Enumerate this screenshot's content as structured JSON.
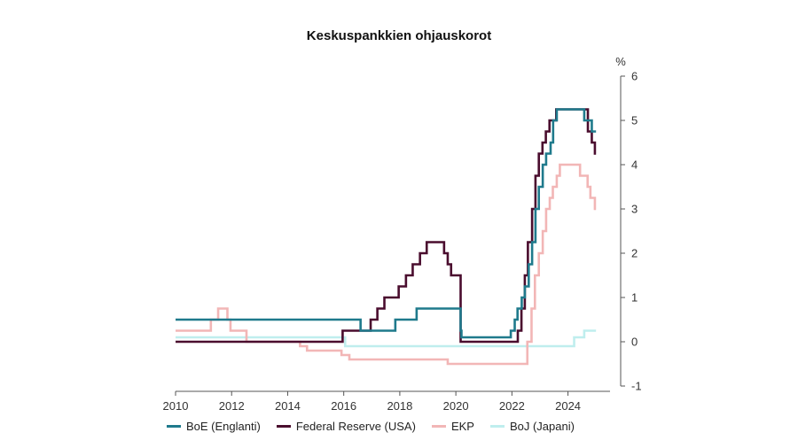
{
  "chart_data": {
    "type": "line",
    "title": "Keskuspankkien ohjauskorot",
    "ylabel": "%",
    "xlabel": "",
    "xlim": [
      2010,
      2025.5
    ],
    "ylim": [
      -1,
      6
    ],
    "x_ticks": [
      "2010",
      "2012",
      "2014",
      "2016",
      "2018",
      "2020",
      "2022",
      "2024"
    ],
    "y_ticks": [
      "6",
      "5",
      "4",
      "3",
      "2",
      "1",
      "0",
      "-1"
    ],
    "grid": false,
    "legend_position": "bottom",
    "series": [
      {
        "name": "BoE (Englanti)",
        "color": "#1f7a8c",
        "step": true,
        "points": [
          [
            2010,
            0.5
          ],
          [
            2016.6,
            0.5
          ],
          [
            2016.6,
            0.25
          ],
          [
            2017.84,
            0.25
          ],
          [
            2017.84,
            0.5
          ],
          [
            2018.6,
            0.5
          ],
          [
            2018.6,
            0.75
          ],
          [
            2020.17,
            0.75
          ],
          [
            2020.17,
            0.25
          ],
          [
            2020.2,
            0.25
          ],
          [
            2020.2,
            0.1
          ],
          [
            2021.96,
            0.1
          ],
          [
            2021.96,
            0.25
          ],
          [
            2022.1,
            0.25
          ],
          [
            2022.1,
            0.5
          ],
          [
            2022.2,
            0.5
          ],
          [
            2022.2,
            0.75
          ],
          [
            2022.35,
            0.75
          ],
          [
            2022.35,
            1.0
          ],
          [
            2022.46,
            1.0
          ],
          [
            2022.46,
            1.25
          ],
          [
            2022.6,
            1.25
          ],
          [
            2022.6,
            1.75
          ],
          [
            2022.72,
            1.75
          ],
          [
            2022.72,
            2.25
          ],
          [
            2022.84,
            2.25
          ],
          [
            2022.84,
            3.0
          ],
          [
            2022.96,
            3.0
          ],
          [
            2022.96,
            3.5
          ],
          [
            2023.1,
            3.5
          ],
          [
            2023.1,
            4.0
          ],
          [
            2023.22,
            4.0
          ],
          [
            2023.22,
            4.25
          ],
          [
            2023.38,
            4.25
          ],
          [
            2023.38,
            4.5
          ],
          [
            2023.47,
            4.5
          ],
          [
            2023.47,
            5.0
          ],
          [
            2023.6,
            5.0
          ],
          [
            2023.6,
            5.25
          ],
          [
            2024.58,
            5.25
          ],
          [
            2024.58,
            5.0
          ],
          [
            2024.85,
            5.0
          ],
          [
            2024.85,
            4.75
          ],
          [
            2025.0,
            4.75
          ]
        ]
      },
      {
        "name": "Federal Reserve (USA)",
        "color": "#4a0d2e",
        "step": true,
        "points": [
          [
            2010,
            0.0
          ],
          [
            2015.96,
            0.0
          ],
          [
            2015.96,
            0.25
          ],
          [
            2016.96,
            0.25
          ],
          [
            2016.96,
            0.5
          ],
          [
            2017.2,
            0.5
          ],
          [
            2017.2,
            0.75
          ],
          [
            2017.45,
            0.75
          ],
          [
            2017.45,
            1.0
          ],
          [
            2017.96,
            1.0
          ],
          [
            2017.96,
            1.25
          ],
          [
            2018.22,
            1.25
          ],
          [
            2018.22,
            1.5
          ],
          [
            2018.46,
            1.5
          ],
          [
            2018.46,
            1.75
          ],
          [
            2018.72,
            1.75
          ],
          [
            2018.72,
            2.0
          ],
          [
            2018.96,
            2.0
          ],
          [
            2018.96,
            2.25
          ],
          [
            2019.58,
            2.25
          ],
          [
            2019.58,
            2.0
          ],
          [
            2019.71,
            2.0
          ],
          [
            2019.71,
            1.75
          ],
          [
            2019.83,
            1.75
          ],
          [
            2019.83,
            1.5
          ],
          [
            2020.17,
            1.5
          ],
          [
            2020.17,
            0.0
          ],
          [
            2022.21,
            0.0
          ],
          [
            2022.21,
            0.25
          ],
          [
            2022.34,
            0.25
          ],
          [
            2022.34,
            0.75
          ],
          [
            2022.46,
            0.75
          ],
          [
            2022.46,
            1.5
          ],
          [
            2022.57,
            1.5
          ],
          [
            2022.57,
            2.25
          ],
          [
            2022.72,
            2.25
          ],
          [
            2022.72,
            3.0
          ],
          [
            2022.84,
            3.0
          ],
          [
            2022.84,
            3.75
          ],
          [
            2022.96,
            3.75
          ],
          [
            2022.96,
            4.25
          ],
          [
            2023.09,
            4.25
          ],
          [
            2023.09,
            4.5
          ],
          [
            2023.21,
            4.5
          ],
          [
            2023.21,
            4.75
          ],
          [
            2023.34,
            4.75
          ],
          [
            2023.34,
            5.0
          ],
          [
            2023.58,
            5.0
          ],
          [
            2023.58,
            5.25
          ],
          [
            2024.71,
            5.25
          ],
          [
            2024.71,
            4.75
          ],
          [
            2024.85,
            4.75
          ],
          [
            2024.85,
            4.5
          ],
          [
            2024.96,
            4.5
          ],
          [
            2024.96,
            4.25
          ],
          [
            2025.0,
            4.25
          ]
        ]
      },
      {
        "name": "EKP",
        "color": "#f2b6b6",
        "step": true,
        "points": [
          [
            2010,
            0.25
          ],
          [
            2011.26,
            0.25
          ],
          [
            2011.26,
            0.5
          ],
          [
            2011.52,
            0.5
          ],
          [
            2011.52,
            0.75
          ],
          [
            2011.85,
            0.75
          ],
          [
            2011.85,
            0.5
          ],
          [
            2011.96,
            0.5
          ],
          [
            2011.96,
            0.25
          ],
          [
            2012.53,
            0.25
          ],
          [
            2012.53,
            0.0
          ],
          [
            2014.44,
            0.0
          ],
          [
            2014.44,
            -0.1
          ],
          [
            2014.69,
            -0.1
          ],
          [
            2014.69,
            -0.2
          ],
          [
            2015.92,
            -0.2
          ],
          [
            2015.92,
            -0.3
          ],
          [
            2016.2,
            -0.3
          ],
          [
            2016.2,
            -0.4
          ],
          [
            2019.71,
            -0.4
          ],
          [
            2019.71,
            -0.5
          ],
          [
            2022.55,
            -0.5
          ],
          [
            2022.55,
            0.0
          ],
          [
            2022.7,
            0.0
          ],
          [
            2022.7,
            0.75
          ],
          [
            2022.82,
            0.75
          ],
          [
            2022.82,
            1.5
          ],
          [
            2022.96,
            1.5
          ],
          [
            2022.96,
            2.0
          ],
          [
            2023.1,
            2.0
          ],
          [
            2023.1,
            2.5
          ],
          [
            2023.22,
            2.5
          ],
          [
            2023.22,
            3.0
          ],
          [
            2023.35,
            3.0
          ],
          [
            2023.35,
            3.25
          ],
          [
            2023.46,
            3.25
          ],
          [
            2023.46,
            3.5
          ],
          [
            2023.6,
            3.5
          ],
          [
            2023.6,
            3.75
          ],
          [
            2023.71,
            3.75
          ],
          [
            2023.71,
            4.0
          ],
          [
            2024.43,
            4.0
          ],
          [
            2024.43,
            3.75
          ],
          [
            2024.7,
            3.75
          ],
          [
            2024.7,
            3.5
          ],
          [
            2024.8,
            3.5
          ],
          [
            2024.8,
            3.25
          ],
          [
            2024.96,
            3.25
          ],
          [
            2024.96,
            3.0
          ],
          [
            2025.0,
            3.0
          ]
        ]
      },
      {
        "name": "BoJ (Japani)",
        "color": "#bfeeee",
        "step": true,
        "points": [
          [
            2010,
            0.1
          ],
          [
            2016.05,
            0.1
          ],
          [
            2016.05,
            -0.1
          ],
          [
            2024.22,
            -0.1
          ],
          [
            2024.22,
            0.1
          ],
          [
            2024.58,
            0.1
          ],
          [
            2024.58,
            0.25
          ],
          [
            2025.0,
            0.25
          ]
        ]
      }
    ]
  }
}
